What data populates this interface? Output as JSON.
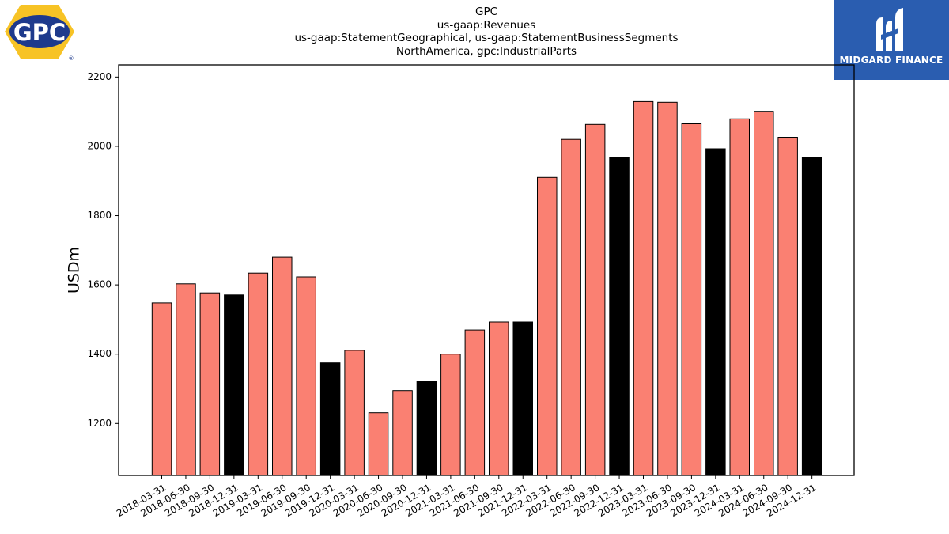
{
  "header": {
    "title_lines": [
      "GPC",
      "us-gaap:Revenues",
      "us-gaap:StatementGeographical, us-gaap:StatementBusinessSegments",
      "NorthAmerica, gpc:IndustrialParts"
    ]
  },
  "logos": {
    "left_logo_text": "GPC",
    "left_logo_mark": "®",
    "right_logo_text": "MIDGARD FINANCE",
    "right_logo_bg": "#2a5db0"
  },
  "chart_data": {
    "type": "bar",
    "title": "GPC",
    "ylabel": "USDm",
    "xlabel": "",
    "ylim": [
      1050,
      2235
    ],
    "yticks": [
      1200,
      1400,
      1600,
      1800,
      2000,
      2200
    ],
    "grid": false,
    "colors": {
      "quarter": "#fa8072",
      "year_end": "#000000",
      "edge": "#000000"
    },
    "categories": [
      "2018-03-31",
      "2018-06-30",
      "2018-09-30",
      "2018-12-31",
      "2019-03-31",
      "2019-06-30",
      "2019-09-30",
      "2019-12-31",
      "2020-03-31",
      "2020-06-30",
      "2020-09-30",
      "2020-12-31",
      "2021-03-31",
      "2021-06-30",
      "2021-09-30",
      "2021-12-31",
      "2022-03-31",
      "2022-06-30",
      "2022-09-30",
      "2022-12-31",
      "2023-03-31",
      "2023-06-30",
      "2023-09-30",
      "2023-12-31",
      "2024-03-31",
      "2024-06-30",
      "2024-09-30",
      "2024-12-31"
    ],
    "values": [
      1548,
      1603,
      1577,
      1571,
      1634,
      1680,
      1623,
      1375,
      1411,
      1231,
      1295,
      1322,
      1400,
      1470,
      1493,
      1493,
      1910,
      2020,
      2063,
      1967,
      2129,
      2127,
      2065,
      1993,
      2079,
      2101,
      2026,
      1967
    ],
    "highlight": [
      false,
      false,
      false,
      true,
      false,
      false,
      false,
      true,
      false,
      false,
      false,
      true,
      false,
      false,
      false,
      true,
      false,
      false,
      false,
      true,
      false,
      false,
      false,
      true,
      false,
      false,
      false,
      true
    ]
  }
}
